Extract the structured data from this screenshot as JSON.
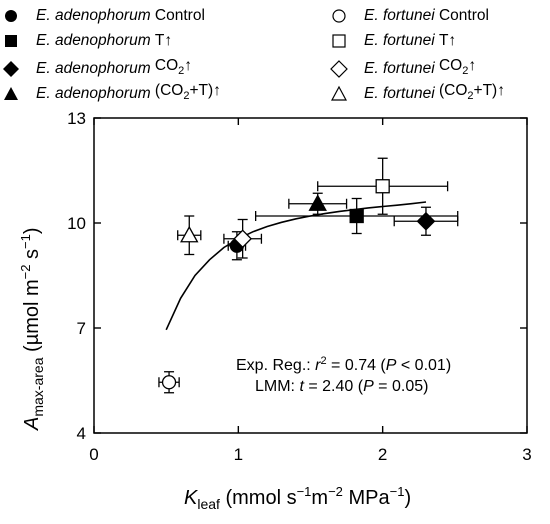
{
  "legend": {
    "items": [
      {
        "species": "E. adenophorum",
        "treatment": "Control",
        "marker": "circle",
        "filled": true
      },
      {
        "species": "E. adenophorum",
        "treatment": "T↑",
        "marker": "square",
        "filled": true
      },
      {
        "species": "E. adenophorum",
        "treatment": "CO2↑",
        "marker": "diamond",
        "filled": true
      },
      {
        "species": "E. adenophorum",
        "treatment": "(CO2+T)↑",
        "marker": "triangle",
        "filled": true
      },
      {
        "species": "E. fortunei",
        "treatment": "Control",
        "marker": "circle",
        "filled": false
      },
      {
        "species": "E. fortunei",
        "treatment": "T↑",
        "marker": "square",
        "filled": false
      },
      {
        "species": "E. fortunei",
        "treatment": "CO2↑",
        "marker": "diamond",
        "filled": false
      },
      {
        "species": "E. fortunei",
        "treatment": "(CO2+T)↑",
        "marker": "triangle",
        "filled": false
      }
    ]
  },
  "chart_data": {
    "type": "scatter",
    "xlabel": "Kleaf (mmol s−1m−2 MPa−1)",
    "ylabel": "Amax-area (µmol m−2 s−1)",
    "xlim": [
      0,
      3
    ],
    "ylim": [
      4,
      13
    ],
    "xticks": [
      0,
      1,
      2,
      3
    ],
    "yticks": [
      4,
      7,
      10,
      13
    ],
    "points": [
      {
        "species": "E. adenophorum",
        "treatment": "Control",
        "marker": "circle",
        "filled": true,
        "x": 0.99,
        "y": 9.35,
        "xerr": 0.06,
        "yerr": 0.4
      },
      {
        "species": "E. adenophorum",
        "treatment": "T↑",
        "marker": "square",
        "filled": true,
        "x": 1.82,
        "y": 10.2,
        "xerr": 0.7,
        "yerr": 0.5
      },
      {
        "species": "E. adenophorum",
        "treatment": "CO2↑",
        "marker": "diamond",
        "filled": true,
        "x": 2.3,
        "y": 10.05,
        "xerr": 0.22,
        "yerr": 0.4
      },
      {
        "species": "E. adenophorum",
        "treatment": "(CO2+T)↑",
        "marker": "triangle",
        "filled": true,
        "x": 1.55,
        "y": 10.55,
        "xerr": 0.2,
        "yerr": 0.3
      },
      {
        "species": "E. fortunei",
        "treatment": "Control",
        "marker": "circle",
        "filled": false,
        "x": 0.52,
        "y": 5.45,
        "xerr": 0.07,
        "yerr": 0.3
      },
      {
        "species": "E. fortunei",
        "treatment": "T↑",
        "marker": "square",
        "filled": false,
        "x": 2.0,
        "y": 11.05,
        "xerr": 0.45,
        "yerr": 0.8
      },
      {
        "species": "E. fortunei",
        "treatment": "CO2↑",
        "marker": "diamond",
        "filled": false,
        "x": 1.03,
        "y": 9.55,
        "xerr": 0.13,
        "yerr": 0.55
      },
      {
        "species": "E. fortunei",
        "treatment": "(CO2+T)↑",
        "marker": "triangle",
        "filled": false,
        "x": 0.66,
        "y": 9.65,
        "xerr": 0.08,
        "yerr": 0.55
      }
    ],
    "fit_curve": {
      "type": "exponential",
      "x": [
        0.5,
        0.6,
        0.7,
        0.8,
        0.9,
        1.0,
        1.1,
        1.2,
        1.3,
        1.4,
        1.5,
        1.6,
        1.7,
        1.8,
        1.9,
        2.0,
        2.1,
        2.2,
        2.3
      ],
      "y": [
        6.95,
        7.85,
        8.5,
        8.95,
        9.3,
        9.55,
        9.75,
        9.9,
        10.02,
        10.12,
        10.2,
        10.27,
        10.33,
        10.38,
        10.43,
        10.47,
        10.51,
        10.55,
        10.6
      ]
    },
    "annotations": [
      "Exp. Reg.: r2 = 0.74 (P < 0.01)",
      "LMM: t = 2.40 (P = 0.05)"
    ]
  }
}
